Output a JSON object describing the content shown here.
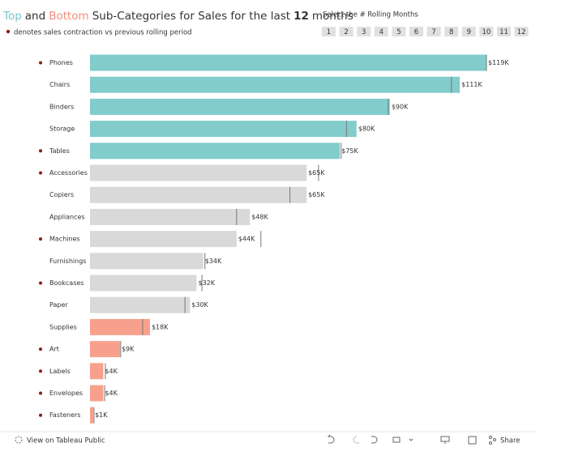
{
  "chart_data": {
    "type": "bar",
    "orientation": "horizontal",
    "title_parts": [
      "Top",
      "and",
      "Bottom",
      "Sub-Categories for Sales for the last",
      "12",
      "months"
    ],
    "title_colors": [
      "#7fc4c4",
      "#333333",
      "#f28e7a",
      "#333333",
      "#333333",
      "#333333"
    ],
    "note": "denotes sales contraction vs previous rolling period",
    "selector_label": "Select the # Rolling Months",
    "selector_options": [
      1,
      2,
      3,
      4,
      5,
      6,
      7,
      8,
      9,
      10,
      11,
      12
    ],
    "categories": [
      "Phones",
      "Chairs",
      "Binders",
      "Storage",
      "Tables",
      "Accessories",
      "Copiers",
      "Appliances",
      "Machines",
      "Furnishings",
      "Bookcases",
      "Paper",
      "Supplies",
      "Art",
      "Labels",
      "Envelopes",
      "Fasteners"
    ],
    "values": [
      119000,
      111000,
      90000,
      80000,
      75000,
      65000,
      65000,
      48000,
      44000,
      34000,
      32000,
      30000,
      18000,
      9000,
      4000,
      4000,
      1000
    ],
    "value_labels": [
      "$119K",
      "$111K",
      "$90K",
      "$80K",
      "$75K",
      "$65K",
      "$65K",
      "$48K",
      "$44K",
      "$34K",
      "$32K",
      "$30K",
      "$18K",
      "$9K",
      "$4K",
      "$4K",
      "$1K"
    ],
    "previous_values": [
      119000,
      108500,
      89500,
      77000,
      75400,
      68600,
      60000,
      44000,
      51300,
      34500,
      33600,
      28500,
      15800,
      9200,
      4600,
      4400,
      1200
    ],
    "colors": [
      "#82cccc",
      "#82cccc",
      "#82cccc",
      "#82cccc",
      "#82cccc",
      "#d9d9d9",
      "#d9d9d9",
      "#d9d9d9",
      "#d9d9d9",
      "#d9d9d9",
      "#d9d9d9",
      "#d9d9d9",
      "#f7a18d",
      "#f7a18d",
      "#f7a18d",
      "#f7a18d",
      "#f7a18d"
    ],
    "contraction": [
      true,
      false,
      false,
      false,
      true,
      true,
      false,
      false,
      true,
      false,
      true,
      false,
      false,
      true,
      true,
      true,
      true
    ],
    "contraction_color": "#8b1a1a"
  },
  "toolbar": {
    "view_link": "View on Tableau Public",
    "share": "Share"
  }
}
